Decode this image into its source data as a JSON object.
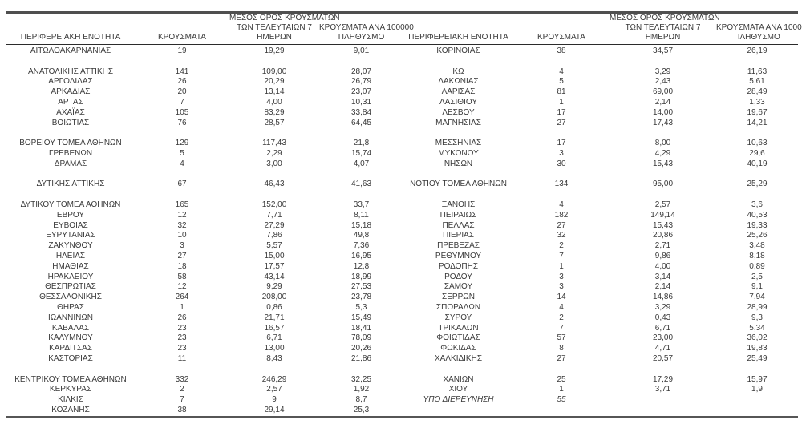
{
  "colors": {
    "text": "#3a3a3a",
    "top_border": "#4f4f4f",
    "bottom_border": "#565656",
    "header_rule": "#2b2b2b",
    "background": "#ffffff"
  },
  "table": {
    "headers": {
      "region": "ΠΕΡΙΦΕΡΕΙΑΚΗ ΕΝΟΤΗΤΑ",
      "cases": "ΚΡΟΥΣΜΑΤΑ",
      "avg7_lines": [
        "ΜΕΣΟΣ ΟΡΟΣ ΚΡΟΥΣΜΑΤΩΝ",
        "ΤΩΝ ΤΕΛΕΥΤΑΙΩΝ 7",
        "ΗΜΕΡΩΝ"
      ],
      "per100k_lines": [
        "ΚΡΟΥΣΜΑΤΑ ΑΝΑ 100000",
        "ΠΛΗΘΥΣΜΟ"
      ]
    },
    "left_rows": [
      {
        "region": "ΑΙΤΩΛΟΑΚΑΡΝΑΝΙΑΣ",
        "cases": "19",
        "avg7": "19,29",
        "per100k": "9,01"
      },
      {
        "region": "",
        "cases": "",
        "avg7": "",
        "per100k": ""
      },
      {
        "region": "ΑΝΑΤΟΛΙΚΗΣ ΑΤΤΙΚΗΣ",
        "cases": "141",
        "avg7": "109,00",
        "per100k": "28,07"
      },
      {
        "region": "ΑΡΓΟΛΙΔΑΣ",
        "cases": "26",
        "avg7": "20,29",
        "per100k": "26,79"
      },
      {
        "region": "ΑΡΚΑΔΙΑΣ",
        "cases": "20",
        "avg7": "13,14",
        "per100k": "23,07"
      },
      {
        "region": "ΑΡΤΑΣ",
        "cases": "7",
        "avg7": "4,00",
        "per100k": "10,31"
      },
      {
        "region": "ΑΧΑΪΑΣ",
        "cases": "105",
        "avg7": "83,29",
        "per100k": "33,84"
      },
      {
        "region": "ΒΟΙΩΤΙΑΣ",
        "cases": "76",
        "avg7": "28,57",
        "per100k": "64,45"
      },
      {
        "region": "",
        "cases": "",
        "avg7": "",
        "per100k": ""
      },
      {
        "region": "ΒΟΡΕΙΟΥ ΤΟΜΕΑ ΑΘΗΝΩΝ",
        "cases": "129",
        "avg7": "117,43",
        "per100k": "21,8"
      },
      {
        "region": "ΓΡΕΒΕΝΩΝ",
        "cases": "5",
        "avg7": "2,29",
        "per100k": "15,74"
      },
      {
        "region": "ΔΡΑΜΑΣ",
        "cases": "4",
        "avg7": "3,00",
        "per100k": "4,07"
      },
      {
        "region": "",
        "cases": "",
        "avg7": "",
        "per100k": ""
      },
      {
        "region": "ΔΥΤΙΚΗΣ ΑΤΤΙΚΗΣ",
        "cases": "67",
        "avg7": "46,43",
        "per100k": "41,63"
      },
      {
        "region": "",
        "cases": "",
        "avg7": "",
        "per100k": ""
      },
      {
        "region": "ΔΥΤΙΚΟΥ ΤΟΜΕΑ ΑΘΗΝΩΝ",
        "cases": "165",
        "avg7": "152,00",
        "per100k": "33,7"
      },
      {
        "region": "ΕΒΡΟΥ",
        "cases": "12",
        "avg7": "7,71",
        "per100k": "8,11"
      },
      {
        "region": "ΕΥΒΟΙΑΣ",
        "cases": "32",
        "avg7": "27,29",
        "per100k": "15,18"
      },
      {
        "region": "ΕΥΡΥΤΑΝΙΑΣ",
        "cases": "10",
        "avg7": "7,86",
        "per100k": "49,8"
      },
      {
        "region": "ΖΑΚΥΝΘΟΥ",
        "cases": "3",
        "avg7": "5,57",
        "per100k": "7,36"
      },
      {
        "region": "ΗΛΕΙΑΣ",
        "cases": "27",
        "avg7": "15,00",
        "per100k": "16,95"
      },
      {
        "region": "ΗΜΑΘΙΑΣ",
        "cases": "18",
        "avg7": "17,57",
        "per100k": "12,8"
      },
      {
        "region": "ΗΡΑΚΛΕΙΟΥ",
        "cases": "58",
        "avg7": "43,14",
        "per100k": "18,99"
      },
      {
        "region": "ΘΕΣΠΡΩΤΙΑΣ",
        "cases": "12",
        "avg7": "9,29",
        "per100k": "27,53"
      },
      {
        "region": "ΘΕΣΣΑΛΟΝΙΚΗΣ",
        "cases": "264",
        "avg7": "208,00",
        "per100k": "23,78"
      },
      {
        "region": "ΘΗΡΑΣ",
        "cases": "1",
        "avg7": "0,86",
        "per100k": "5,3"
      },
      {
        "region": "ΙΩΑΝΝΙΝΩΝ",
        "cases": "26",
        "avg7": "21,71",
        "per100k": "15,49"
      },
      {
        "region": "ΚΑΒΑΛΑΣ",
        "cases": "23",
        "avg7": "16,57",
        "per100k": "18,41"
      },
      {
        "region": "ΚΑΛΥΜΝΟΥ",
        "cases": "23",
        "avg7": "6,71",
        "per100k": "78,09"
      },
      {
        "region": "ΚΑΡΔΙΤΣΑΣ",
        "cases": "23",
        "avg7": "13,00",
        "per100k": "20,26"
      },
      {
        "region": "ΚΑΣΤΟΡΙΑΣ",
        "cases": "11",
        "avg7": "8,43",
        "per100k": "21,86"
      },
      {
        "region": "",
        "cases": "",
        "avg7": "",
        "per100k": ""
      },
      {
        "region": "ΚΕΝΤΡΙΚΟΥ ΤΟΜΕΑ ΑΘΗΝΩΝ",
        "cases": "332",
        "avg7": "246,29",
        "per100k": "32,25"
      },
      {
        "region": "ΚΕΡΚΥΡΑΣ",
        "cases": "2",
        "avg7": "2,57",
        "per100k": "1,92"
      },
      {
        "region": "ΚΙΛΚΙΣ",
        "cases": "7",
        "avg7": "9",
        "per100k": "8,7"
      },
      {
        "region": "ΚΟΖΑΝΗΣ",
        "cases": "38",
        "avg7": "29,14",
        "per100k": "25,3"
      }
    ],
    "right_rows": [
      {
        "region": "ΚΟΡΙΝΘΙΑΣ",
        "cases": "38",
        "avg7": "34,57",
        "per100k": "26,19"
      },
      {
        "region": "",
        "cases": "",
        "avg7": "",
        "per100k": ""
      },
      {
        "region": "ΚΩ",
        "cases": "4",
        "avg7": "3,29",
        "per100k": "11,63"
      },
      {
        "region": "ΛΑΚΩΝΙΑΣ",
        "cases": "5",
        "avg7": "2,43",
        "per100k": "5,61"
      },
      {
        "region": "ΛΑΡΙΣΑΣ",
        "cases": "81",
        "avg7": "69,00",
        "per100k": "28,49"
      },
      {
        "region": "ΛΑΣΙΘΙΟΥ",
        "cases": "1",
        "avg7": "2,14",
        "per100k": "1,33"
      },
      {
        "region": "ΛΕΣΒΟΥ",
        "cases": "17",
        "avg7": "14,00",
        "per100k": "19,67"
      },
      {
        "region": "ΜΑΓΝΗΣΙΑΣ",
        "cases": "27",
        "avg7": "17,43",
        "per100k": "14,21"
      },
      {
        "region": "",
        "cases": "",
        "avg7": "",
        "per100k": ""
      },
      {
        "region": "ΜΕΣΣΗΝΙΑΣ",
        "cases": "17",
        "avg7": "8,00",
        "per100k": "10,63"
      },
      {
        "region": "ΜΥΚΟΝΟΥ",
        "cases": "3",
        "avg7": "4,29",
        "per100k": "29,6"
      },
      {
        "region": "ΝΗΣΩΝ",
        "cases": "30",
        "avg7": "15,43",
        "per100k": "40,19"
      },
      {
        "region": "",
        "cases": "",
        "avg7": "",
        "per100k": ""
      },
      {
        "region": "ΝΟΤΙΟΥ ΤΟΜΕΑ ΑΘΗΝΩΝ",
        "cases": "134",
        "avg7": "95,00",
        "per100k": "25,29"
      },
      {
        "region": "",
        "cases": "",
        "avg7": "",
        "per100k": ""
      },
      {
        "region": "ΞΑΝΘΗΣ",
        "cases": "4",
        "avg7": "2,57",
        "per100k": "3,6"
      },
      {
        "region": "ΠΕΙΡΑΙΩΣ",
        "cases": "182",
        "avg7": "149,14",
        "per100k": "40,53"
      },
      {
        "region": "ΠΕΛΛΑΣ",
        "cases": "27",
        "avg7": "15,43",
        "per100k": "19,33"
      },
      {
        "region": "ΠΙΕΡΙΑΣ",
        "cases": "32",
        "avg7": "20,86",
        "per100k": "25,26"
      },
      {
        "region": "ΠΡΕΒΕΖΑΣ",
        "cases": "2",
        "avg7": "2,71",
        "per100k": "3,48"
      },
      {
        "region": "ΡΕΘΥΜΝΟΥ",
        "cases": "7",
        "avg7": "9,86",
        "per100k": "8,18"
      },
      {
        "region": "ΡΟΔΟΠΗΣ",
        "cases": "1",
        "avg7": "4,00",
        "per100k": "0,89"
      },
      {
        "region": "ΡΟΔΟΥ",
        "cases": "3",
        "avg7": "3,14",
        "per100k": "2,5"
      },
      {
        "region": "ΣΑΜΟΥ",
        "cases": "3",
        "avg7": "2,14",
        "per100k": "9,1"
      },
      {
        "region": "ΣΕΡΡΩΝ",
        "cases": "14",
        "avg7": "14,86",
        "per100k": "7,94"
      },
      {
        "region": "ΣΠΟΡΑΔΩΝ",
        "cases": "4",
        "avg7": "3,29",
        "per100k": "28,99"
      },
      {
        "region": "ΣΥΡΟΥ",
        "cases": "2",
        "avg7": "0,43",
        "per100k": "9,3"
      },
      {
        "region": "ΤΡΙΚΑΛΩΝ",
        "cases": "7",
        "avg7": "6,71",
        "per100k": "5,34"
      },
      {
        "region": "ΦΘΙΩΤΙΔΑΣ",
        "cases": "57",
        "avg7": "23,00",
        "per100k": "36,02"
      },
      {
        "region": "ΦΩΚΙΔΑΣ",
        "cases": "8",
        "avg7": "4,71",
        "per100k": "19,83"
      },
      {
        "region": "ΧΑΛΚΙΔΙΚΗΣ",
        "cases": "27",
        "avg7": "20,57",
        "per100k": "25,49"
      },
      {
        "region": "",
        "cases": "",
        "avg7": "",
        "per100k": ""
      },
      {
        "region": "ΧΑΝΙΩΝ",
        "cases": "25",
        "avg7": "17,29",
        "per100k": "15,97"
      },
      {
        "region": "ΧΙΟΥ",
        "cases": "1",
        "avg7": "3,71",
        "per100k": "1,9"
      },
      {
        "region": "ΥΠΟ ΔΙΕΡΕΥΝΗΣΗ",
        "cases": "55",
        "avg7": "",
        "per100k": "",
        "italic": true
      },
      {
        "region": "",
        "cases": "",
        "avg7": "",
        "per100k": ""
      }
    ]
  }
}
